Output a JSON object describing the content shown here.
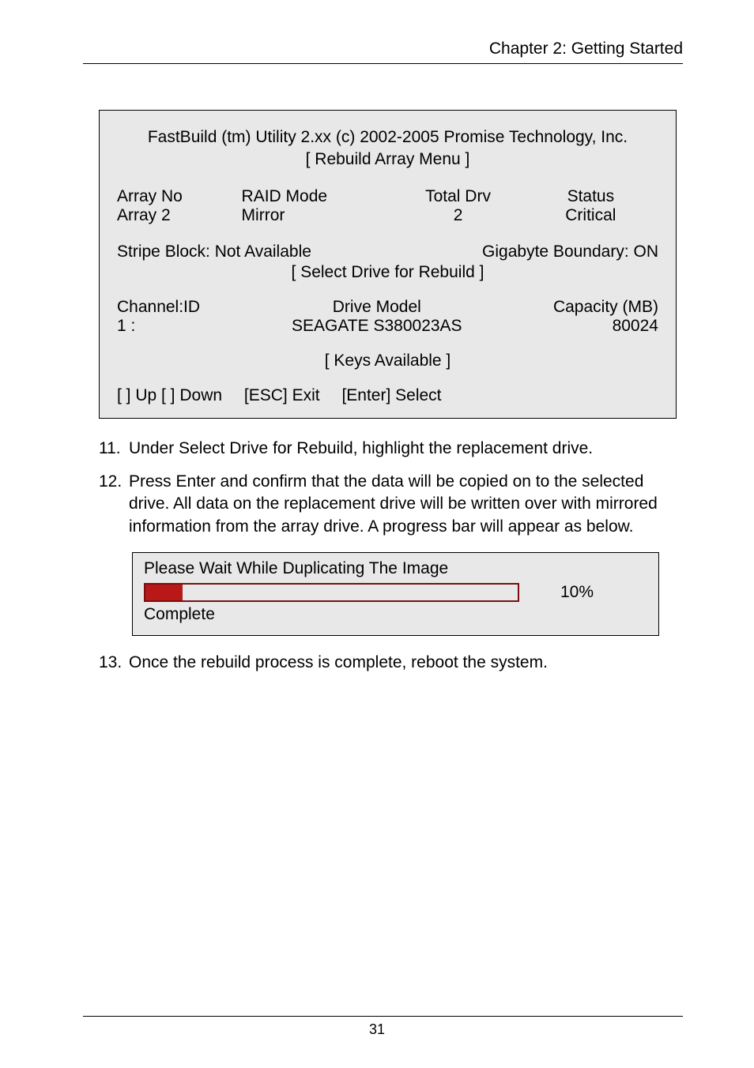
{
  "header": {
    "chapter": "Chapter 2: Getting Started"
  },
  "panel": {
    "title_line1": "FastBuild (tm) Utility 2.xx (c) 2002-2005 Promise Technology, Inc.",
    "title_line2": "[ Rebuild Array Menu ]",
    "cols": {
      "array_no_h": "Array No",
      "raid_mode_h": "RAID Mode",
      "total_drv_h": "Total Drv",
      "status_h": "Status",
      "array_no_v": "Array 2",
      "raid_mode_v": "Mirror",
      "total_drv_v": "2",
      "status_v": "Critical"
    },
    "stripe_left": "Stripe Block: Not Available",
    "stripe_right": "Gigabyte Boundary: ON",
    "select_header": "[ Select Drive for Rebuild ]",
    "ch": {
      "chid_h": "Channel:ID",
      "model_h": "Drive Model",
      "cap_h": "Capacity (MB)",
      "chid_v": "1 :",
      "model_v": "SEAGATE S380023AS",
      "cap_v": "80024"
    },
    "keys": "[ Keys Available ]",
    "nav": {
      "updown": "[  ] Up [  ] Down",
      "esc": "[ESC] Exit",
      "enter": "[Enter] Select"
    }
  },
  "steps": {
    "s11_num": "11.",
    "s11": "Under Select Drive for Rebuild, highlight the replacement drive.",
    "s12_num": "12.",
    "s12": "Press Enter and confirm that the data will be copied on to the selected drive. All data on the replacement drive will be written over with mirrored information from the array drive. A progress bar will appear as below.",
    "s13_num": "13.",
    "s13": "Once the rebuild process is complete, reboot the system."
  },
  "progress": {
    "title": "Please Wait While Duplicating The Image",
    "percent_label": "10%",
    "fill_pct": 10,
    "complete": "Complete"
  },
  "footer": {
    "page": "31"
  },
  "colors": {
    "bar_fill": "#b81818",
    "bar_border": "#7a0f0f",
    "panel_bg": "#e8e8e8"
  }
}
